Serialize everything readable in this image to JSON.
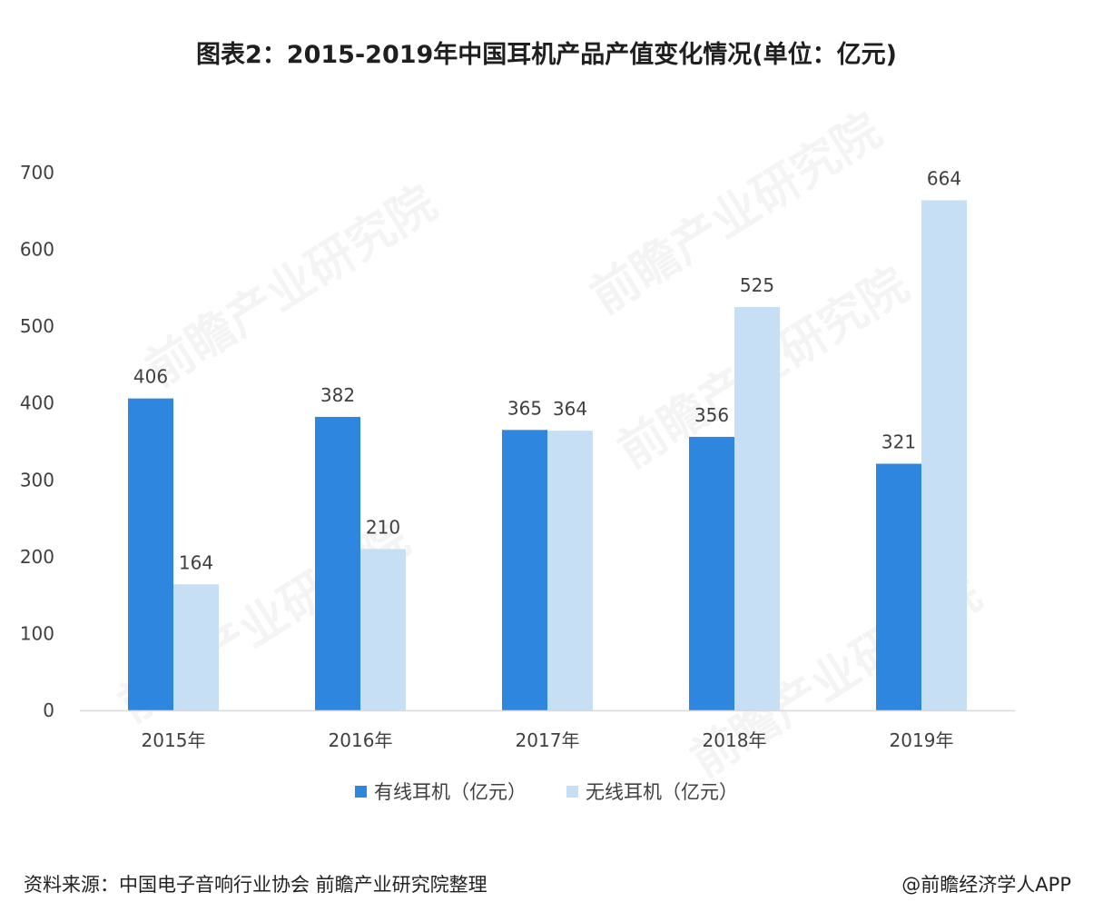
{
  "title": "图表2：2015-2019年中国耳机产品产值变化情况(单位：亿元)",
  "source": "资料来源：中国电子音响行业协会 前瞻产业研究院整理",
  "credit": "@前瞻经济学人APP",
  "watermark": "前瞻产业研究院",
  "colors": {
    "wired": "#2e86de",
    "wireless": "#c6dff5",
    "axis": "#d9d9d9",
    "text": "#404040"
  },
  "chart_data": {
    "type": "bar",
    "categories": [
      "2015年",
      "2016年",
      "2017年",
      "2018年",
      "2019年"
    ],
    "series": [
      {
        "name": "有线耳机（亿元）",
        "values": [
          406,
          382,
          365,
          356,
          321
        ]
      },
      {
        "name": "无线耳机（亿元）",
        "values": [
          164,
          210,
          364,
          525,
          664
        ]
      }
    ],
    "ylim": [
      0,
      700
    ],
    "yticks": [
      0,
      100,
      200,
      300,
      400,
      500,
      600,
      700
    ],
    "title": "图表2：2015-2019年中国耳机产品产值变化情况(单位：亿元)",
    "xlabel": "",
    "ylabel": "",
    "grid": false,
    "legend": "bottom"
  }
}
